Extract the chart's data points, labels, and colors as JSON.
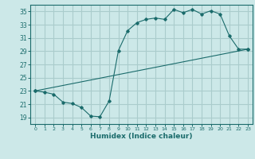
{
  "xlabel": "Humidex (Indice chaleur)",
  "ylabel": "",
  "background_color": "#cce8e8",
  "grid_color": "#aacccc",
  "line_color": "#1a6b6b",
  "xlim": [
    -0.5,
    23.5
  ],
  "ylim": [
    18,
    36
  ],
  "yticks": [
    19,
    21,
    23,
    25,
    27,
    29,
    31,
    33,
    35
  ],
  "xticks": [
    0,
    1,
    2,
    3,
    4,
    5,
    6,
    7,
    8,
    9,
    10,
    11,
    12,
    13,
    14,
    15,
    16,
    17,
    18,
    19,
    20,
    21,
    22,
    23
  ],
  "curve1_x": [
    0,
    1,
    2,
    3,
    4,
    5,
    6,
    7,
    8,
    9,
    10,
    11,
    12,
    13,
    14,
    15,
    16,
    17,
    18,
    19,
    20,
    21,
    22,
    23
  ],
  "curve1_y": [
    23,
    22.8,
    22.5,
    21.3,
    21.1,
    20.5,
    19.2,
    19.1,
    21.5,
    29.1,
    32.1,
    33.3,
    33.8,
    34.0,
    33.8,
    35.3,
    34.8,
    35.3,
    34.6,
    35.1,
    34.6,
    31.3,
    29.3,
    29.3
  ],
  "curve2_x": [
    0,
    23
  ],
  "curve2_y": [
    23,
    29.3
  ]
}
